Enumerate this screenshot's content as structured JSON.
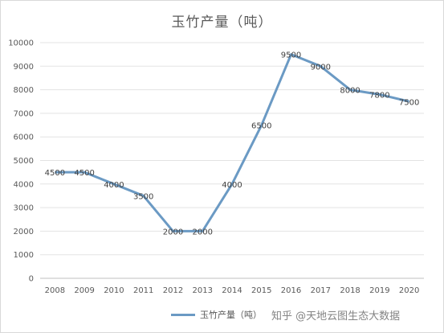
{
  "chart_data": {
    "type": "line",
    "title": "玉竹产量（吨）",
    "categories": [
      "2008",
      "2009",
      "2010",
      "2011",
      "2012",
      "2013",
      "2014",
      "2015",
      "2016",
      "2017",
      "2018",
      "2019",
      "2020"
    ],
    "series": [
      {
        "name": "玉竹产量（吨）",
        "values": [
          4500,
          4500,
          4000,
          3500,
          2000,
          2000,
          4000,
          6500,
          9500,
          9000,
          8000,
          7800,
          7500
        ]
      }
    ],
    "ylim": [
      0,
      10000
    ],
    "yticks": [
      0,
      1000,
      2000,
      3000,
      4000,
      5000,
      6000,
      7000,
      8000,
      9000,
      10000
    ],
    "grid": true,
    "legend": "bottom",
    "color": "#6b9ac4"
  },
  "watermark": "知乎 @天地云图生态大数据"
}
